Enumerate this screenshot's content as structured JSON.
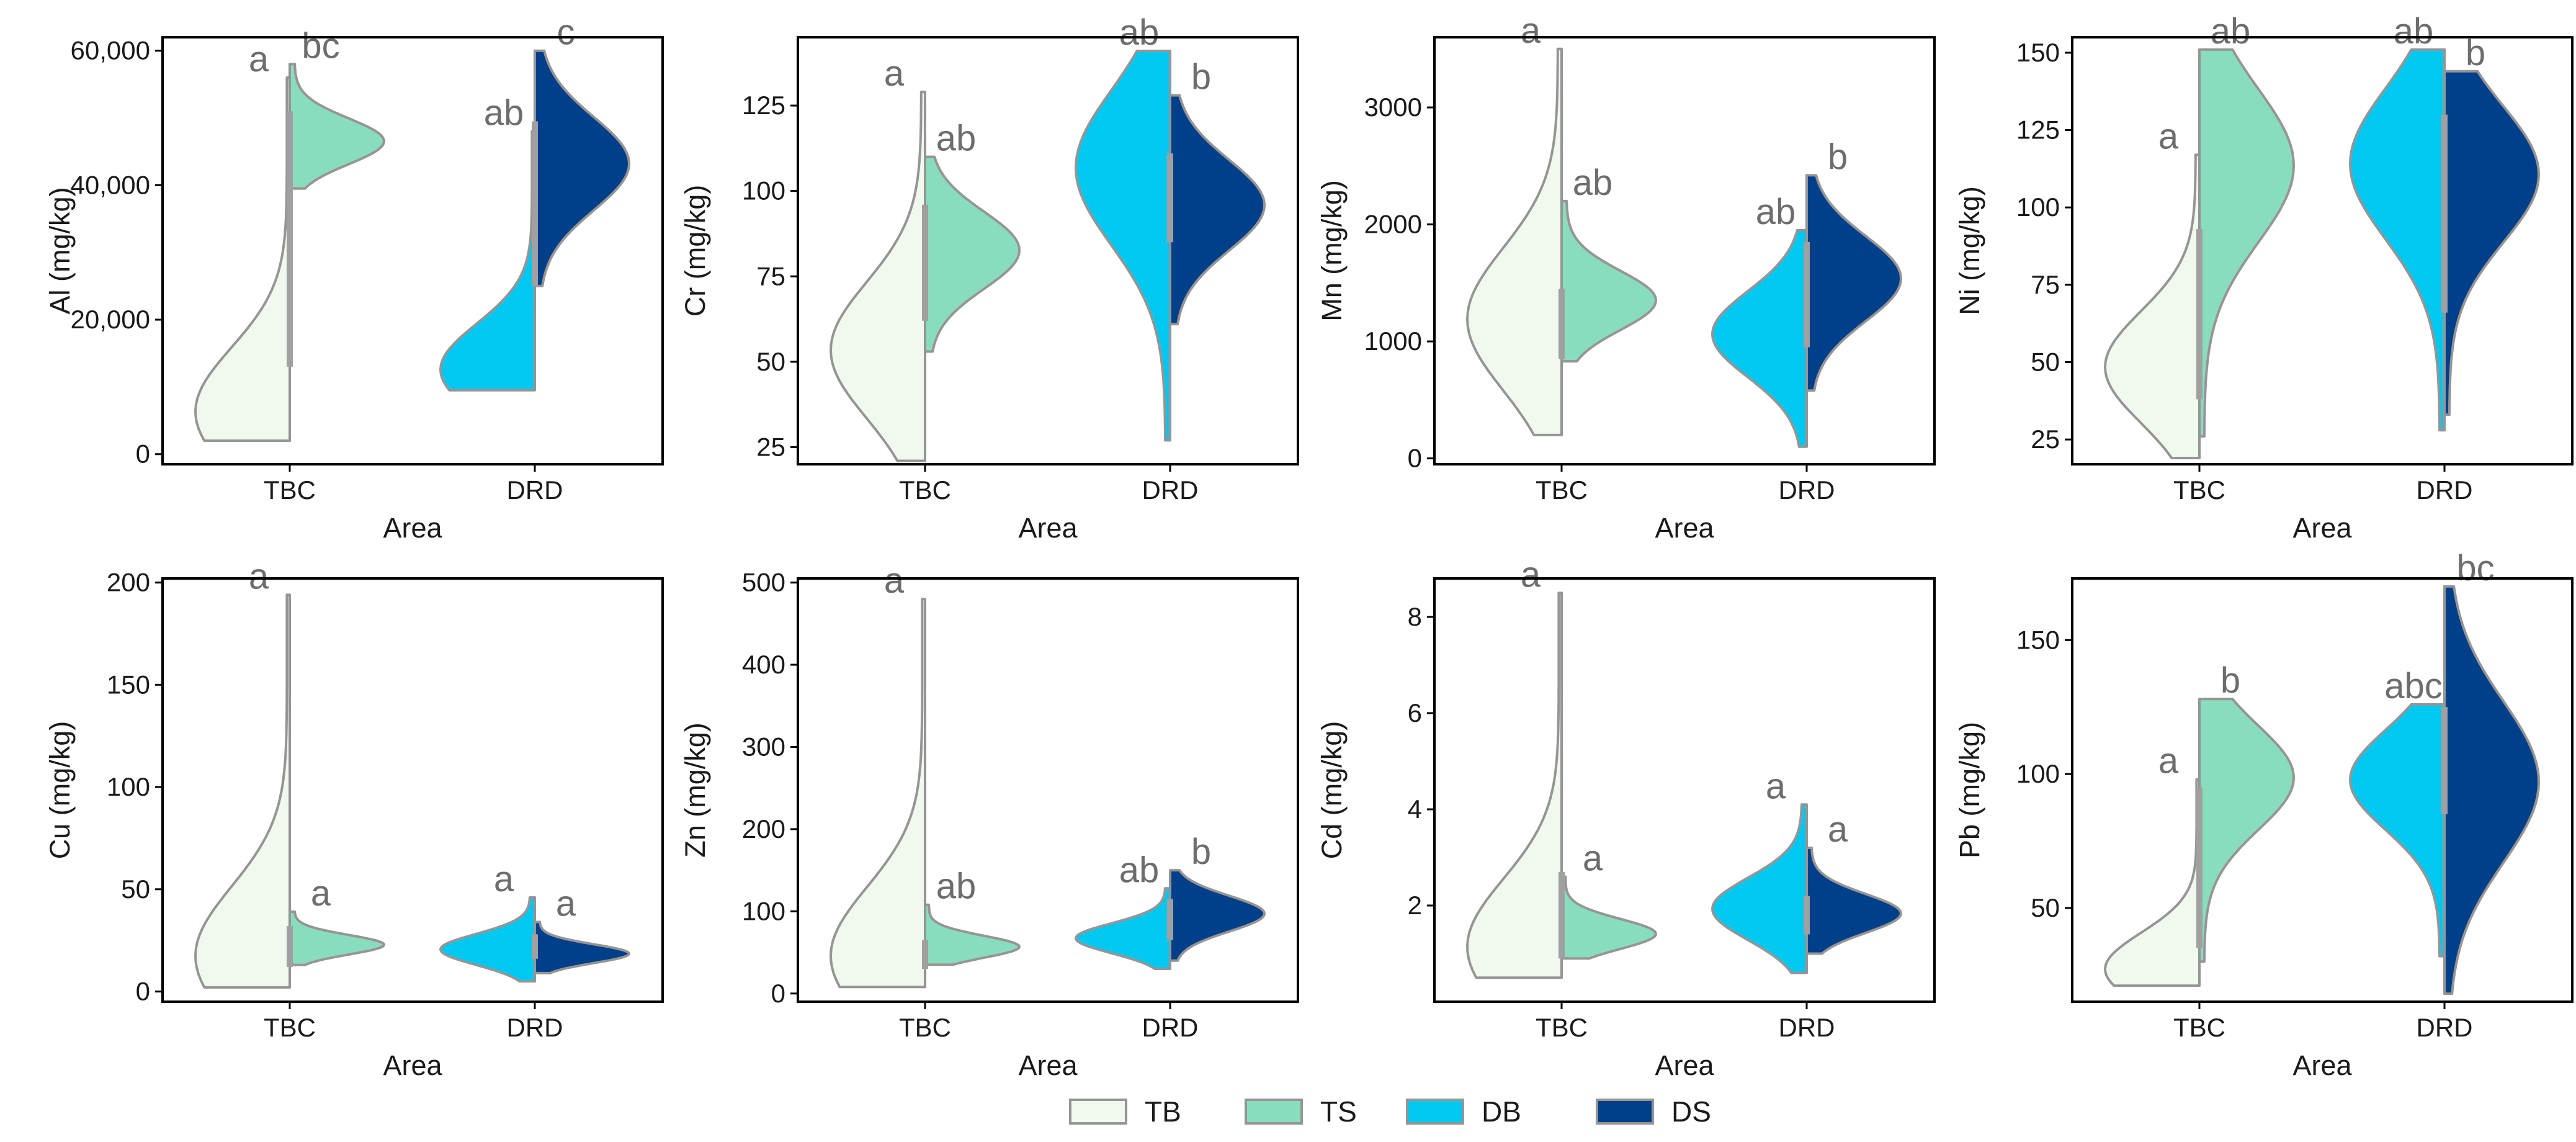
{
  "colors": {
    "TB": "#f1f9ef",
    "TS": "#88ddbd",
    "DB": "#00c8f0",
    "DS": "#003f8a",
    "outline": "#959595",
    "box": "#a0a0a0",
    "sig": "#6d6d6d",
    "frame": "#000000"
  },
  "legend": [
    {
      "key": "TB",
      "label": "TB"
    },
    {
      "key": "TS",
      "label": "TS"
    },
    {
      "key": "DB",
      "label": "DB"
    },
    {
      "key": "DS",
      "label": "DS"
    }
  ],
  "chart_data": [
    {
      "type": "split-violin",
      "xlabel": "Area",
      "ylabel": "Al (mg/kg)",
      "categories": [
        "TBC",
        "DRD"
      ],
      "ylim": [
        -1500,
        62000
      ],
      "yticks": [
        0,
        20000,
        40000,
        60000
      ],
      "ytick_labels": [
        "0",
        "20,000",
        "40,000",
        "60,000"
      ],
      "series": [
        {
          "group": "TB",
          "category": "TBC",
          "side": "left",
          "min": 2000,
          "max": 56000,
          "shape": "bottom",
          "q1": 13000,
          "median": 33000,
          "q3": 51000,
          "sig": "a"
        },
        {
          "group": "TS",
          "category": "TBC",
          "side": "right",
          "min": 39500,
          "max": 58000,
          "shape": "center-low",
          "q1": null,
          "median": null,
          "q3": null,
          "sig": "bc"
        },
        {
          "group": "DB",
          "category": "DRD",
          "side": "left",
          "min": 9500,
          "max": 48000,
          "shape": "bottom",
          "q1": 25000,
          "median": 33000,
          "q3": 42000,
          "sig": "ab"
        },
        {
          "group": "DS",
          "category": "DRD",
          "side": "right",
          "min": 25000,
          "max": 60000,
          "shape": "center",
          "q1": 41000,
          "median": 46000,
          "q3": 49500,
          "sig": "c"
        }
      ]
    },
    {
      "type": "split-violin",
      "xlabel": "Area",
      "ylabel": "Cr (mg/kg)",
      "categories": [
        "TBC",
        "DRD"
      ],
      "ylim": [
        20,
        145
      ],
      "yticks": [
        25,
        50,
        75,
        100,
        125
      ],
      "ytick_labels": [
        "25",
        "50",
        "75",
        "100",
        "125"
      ],
      "series": [
        {
          "group": "TB",
          "category": "TBC",
          "side": "left",
          "min": 21,
          "max": 129,
          "shape": "low",
          "q1": 62,
          "median": 75,
          "q3": 96,
          "sig": "a"
        },
        {
          "group": "TS",
          "category": "TBC",
          "side": "right",
          "min": 53,
          "max": 110,
          "shape": "center",
          "q1": null,
          "median": null,
          "q3": null,
          "sig": "ab"
        },
        {
          "group": "DB",
          "category": "DRD",
          "side": "left",
          "min": 27,
          "max": 141,
          "shape": "high",
          "q1": 85,
          "median": 100,
          "q3": 111,
          "sig": "ab"
        },
        {
          "group": "DS",
          "category": "DRD",
          "side": "right",
          "min": 61,
          "max": 128,
          "shape": "center",
          "q1": null,
          "median": null,
          "q3": null,
          "sig": "b"
        }
      ]
    },
    {
      "type": "split-violin",
      "xlabel": "Area",
      "ylabel": "Mn (mg/kg)",
      "categories": [
        "TBC",
        "DRD"
      ],
      "ylim": [
        -50,
        3600
      ],
      "yticks": [
        0,
        1000,
        2000,
        3000
      ],
      "ytick_labels": [
        "0",
        "1000",
        "2000",
        "3000"
      ],
      "series": [
        {
          "group": "TB",
          "category": "TBC",
          "side": "left",
          "min": 200,
          "max": 3500,
          "shape": "low",
          "q1": 850,
          "median": 1100,
          "q3": 1450,
          "sig": "a"
        },
        {
          "group": "TS",
          "category": "TBC",
          "side": "right",
          "min": 830,
          "max": 2200,
          "shape": "center-low",
          "q1": null,
          "median": null,
          "q3": null,
          "sig": "ab"
        },
        {
          "group": "DB",
          "category": "DRD",
          "side": "left",
          "min": 100,
          "max": 1950,
          "shape": "center",
          "q1": 950,
          "median": 1400,
          "q3": 1850,
          "sig": "ab"
        },
        {
          "group": "DS",
          "category": "DRD",
          "side": "right",
          "min": 580,
          "max": 2420,
          "shape": "center",
          "q1": null,
          "median": null,
          "q3": null,
          "sig": "b"
        }
      ]
    },
    {
      "type": "split-violin",
      "xlabel": "Area",
      "ylabel": "Ni (mg/kg)",
      "categories": [
        "TBC",
        "DRD"
      ],
      "ylim": [
        17,
        155
      ],
      "yticks": [
        25,
        50,
        75,
        100,
        125,
        150
      ],
      "ytick_labels": [
        "25",
        "50",
        "75",
        "100",
        "125",
        "150"
      ],
      "series": [
        {
          "group": "TB",
          "category": "TBC",
          "side": "left",
          "min": 19,
          "max": 117,
          "shape": "low",
          "q1": 38,
          "median": 72,
          "q3": 93,
          "sig": "a"
        },
        {
          "group": "TS",
          "category": "TBC",
          "side": "right",
          "min": 26,
          "max": 151,
          "shape": "high",
          "q1": null,
          "median": null,
          "q3": null,
          "sig": "ab"
        },
        {
          "group": "DB",
          "category": "DRD",
          "side": "left",
          "min": 28,
          "max": 151,
          "shape": "high",
          "q1": 66,
          "median": 100,
          "q3": 130,
          "sig": "ab"
        },
        {
          "group": "DS",
          "category": "DRD",
          "side": "right",
          "min": 33,
          "max": 144,
          "shape": "high",
          "q1": null,
          "median": null,
          "q3": null,
          "sig": "b"
        }
      ]
    },
    {
      "type": "split-violin",
      "xlabel": "Area",
      "ylabel": "Cu (mg/kg)",
      "categories": [
        "TBC",
        "DRD"
      ],
      "ylim": [
        -5,
        202
      ],
      "yticks": [
        0,
        50,
        100,
        150,
        200
      ],
      "ytick_labels": [
        "0",
        "50",
        "100",
        "150",
        "200"
      ],
      "series": [
        {
          "group": "TB",
          "category": "TBC",
          "side": "left",
          "min": 2,
          "max": 194,
          "shape": "bottom",
          "q1": 12,
          "median": 22,
          "q3": 32,
          "sig": "a"
        },
        {
          "group": "TS",
          "category": "TBC",
          "side": "right",
          "min": 13,
          "max": 39,
          "shape": "center-low",
          "q1": null,
          "median": null,
          "q3": null,
          "sig": "a"
        },
        {
          "group": "DB",
          "category": "DRD",
          "side": "left",
          "min": 5,
          "max": 46,
          "shape": "center-low",
          "q1": 16,
          "median": 22,
          "q3": 28,
          "sig": "a"
        },
        {
          "group": "DS",
          "category": "DRD",
          "side": "right",
          "min": 9,
          "max": 34,
          "shape": "center-low",
          "q1": null,
          "median": null,
          "q3": null,
          "sig": "a"
        }
      ]
    },
    {
      "type": "split-violin",
      "xlabel": "Area",
      "ylabel": "Zn (mg/kg)",
      "categories": [
        "TBC",
        "DRD"
      ],
      "ylim": [
        -10,
        505
      ],
      "yticks": [
        0,
        100,
        200,
        300,
        400,
        500
      ],
      "ytick_labels": [
        "0",
        "100",
        "200",
        "300",
        "400",
        "500"
      ],
      "series": [
        {
          "group": "TB",
          "category": "TBC",
          "side": "left",
          "min": 8,
          "max": 480,
          "shape": "bottom",
          "q1": 30,
          "median": 50,
          "q3": 65,
          "sig": "a"
        },
        {
          "group": "TS",
          "category": "TBC",
          "side": "right",
          "min": 35,
          "max": 108,
          "shape": "low",
          "q1": null,
          "median": null,
          "q3": null,
          "sig": "ab"
        },
        {
          "group": "DB",
          "category": "DRD",
          "side": "left",
          "min": 30,
          "max": 128,
          "shape": "center-low",
          "q1": 65,
          "median": 95,
          "q3": 115,
          "sig": "ab"
        },
        {
          "group": "DS",
          "category": "DRD",
          "side": "right",
          "min": 40,
          "max": 150,
          "shape": "center",
          "q1": null,
          "median": null,
          "q3": null,
          "sig": "b"
        }
      ]
    },
    {
      "type": "split-violin",
      "xlabel": "Area",
      "ylabel": "Cd (mg/kg)",
      "categories": [
        "TBC",
        "DRD"
      ],
      "ylim": [
        0,
        8.8
      ],
      "yticks": [
        2,
        4,
        6,
        8
      ],
      "ytick_labels": [
        "2",
        "4",
        "6",
        "8"
      ],
      "series": [
        {
          "group": "TB",
          "category": "TBC",
          "side": "left",
          "min": 0.5,
          "max": 8.5,
          "shape": "bottom",
          "q1": 0.9,
          "median": 1.6,
          "q3": 2.7,
          "sig": "a"
        },
        {
          "group": "TS",
          "category": "TBC",
          "side": "right",
          "min": 0.9,
          "max": 2.6,
          "shape": "low",
          "q1": null,
          "median": null,
          "q3": null,
          "sig": "a"
        },
        {
          "group": "DB",
          "category": "DRD",
          "side": "left",
          "min": 0.6,
          "max": 4.1,
          "shape": "center-low",
          "q1": 1.4,
          "median": 1.8,
          "q3": 2.2,
          "sig": "a"
        },
        {
          "group": "DS",
          "category": "DRD",
          "side": "right",
          "min": 1.0,
          "max": 3.2,
          "shape": "center-low",
          "q1": null,
          "median": null,
          "q3": null,
          "sig": "a"
        }
      ]
    },
    {
      "type": "split-violin",
      "xlabel": "Area",
      "ylabel": "Pb (mg/kg)",
      "categories": [
        "TBC",
        "DRD"
      ],
      "ylim": [
        15,
        173
      ],
      "yticks": [
        50,
        100,
        150
      ],
      "ytick_labels": [
        "50",
        "100",
        "150"
      ],
      "series": [
        {
          "group": "TB",
          "category": "TBC",
          "side": "left",
          "min": 21,
          "max": 98,
          "shape": "bottom",
          "q1": 35,
          "median": 60,
          "q3": 95,
          "sig": "a"
        },
        {
          "group": "TS",
          "category": "TBC",
          "side": "right",
          "min": 30,
          "max": 128,
          "shape": "high",
          "q1": null,
          "median": null,
          "q3": null,
          "sig": "b"
        },
        {
          "group": "DB",
          "category": "DRD",
          "side": "left",
          "min": 32,
          "max": 126,
          "shape": "high",
          "q1": 85,
          "median": 108,
          "q3": 125,
          "sig": "abc"
        },
        {
          "group": "DS",
          "category": "DRD",
          "side": "right",
          "min": 18,
          "max": 170,
          "shape": "center",
          "q1": null,
          "median": null,
          "q3": null,
          "sig": "bc"
        }
      ]
    }
  ]
}
